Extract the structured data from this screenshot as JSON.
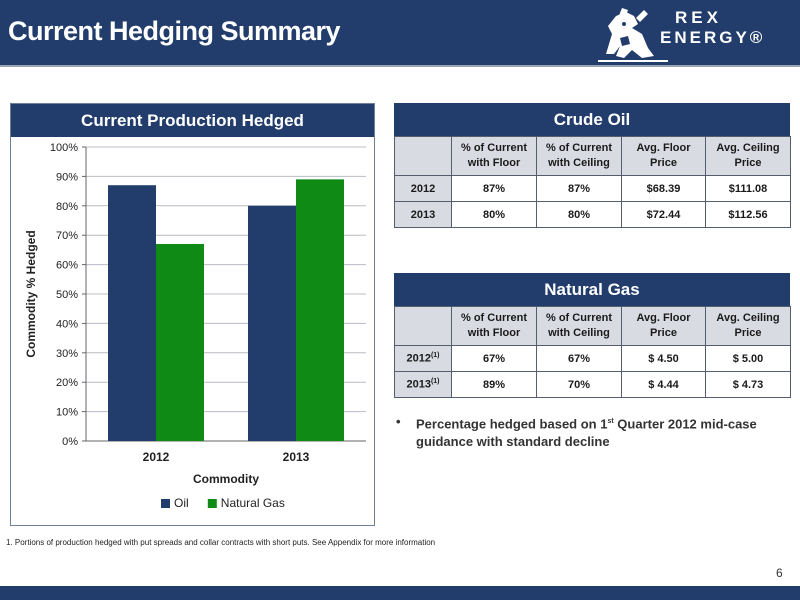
{
  "header": {
    "title": "Current Hedging Summary"
  },
  "logo": {
    "line1": "REX",
    "line2": "ENERGY®"
  },
  "chart_panel": {
    "heading": "Current Production Hedged"
  },
  "chart_data": {
    "type": "bar",
    "categories": [
      "2012",
      "2013"
    ],
    "series": [
      {
        "name": "Oil",
        "values": [
          87,
          80
        ],
        "color": "#223d6b"
      },
      {
        "name": "Natural Gas",
        "values": [
          67,
          89
        ],
        "color": "#0f8a14"
      }
    ],
    "xlabel": "Commodity",
    "ylabel": "Commodity % Hedged",
    "ylim": [
      0,
      100
    ],
    "yticks": [
      "0%",
      "10%",
      "20%",
      "30%",
      "40%",
      "50%",
      "60%",
      "70%",
      "80%",
      "90%",
      "100%"
    ],
    "grid": true,
    "legend": "bottom"
  },
  "crude_oil": {
    "title": "Crude Oil",
    "headers": [
      "",
      "% of Current with Floor",
      "% of Current with Ceiling",
      "Avg. Floor Price",
      "Avg. Ceiling Price"
    ],
    "rows": [
      {
        "label": "2012",
        "sup": "",
        "cells": [
          "87%",
          "87%",
          "$68.39",
          "$111.08"
        ]
      },
      {
        "label": "2013",
        "sup": "",
        "cells": [
          "80%",
          "80%",
          "$72.44",
          "$112.56"
        ]
      }
    ]
  },
  "natural_gas": {
    "title": "Natural Gas",
    "headers": [
      "",
      "% of Current with Floor",
      "% of Current with Ceiling",
      "Avg. Floor Price",
      "Avg. Ceiling Price"
    ],
    "rows": [
      {
        "label": "2012",
        "sup": "(1)",
        "cells": [
          "67%",
          "67%",
          "$ 4.50",
          "$ 5.00"
        ]
      },
      {
        "label": "2013",
        "sup": "(1)",
        "cells": [
          "89%",
          "70%",
          "$ 4.44",
          "$ 4.73"
        ]
      }
    ]
  },
  "bullet": {
    "symbol": "•",
    "pre": "Percentage hedged based on 1",
    "sup": "st",
    "post": " Quarter 2012 mid-case guidance with standard decline"
  },
  "footnote": "1. Portions of production hedged with put spreads and collar contracts with short puts.  See Appendix for more information",
  "page_number": "6",
  "colors": {
    "navy": "#223d6b",
    "green": "#0f8a14",
    "header_fill": "#d9dbe3"
  }
}
